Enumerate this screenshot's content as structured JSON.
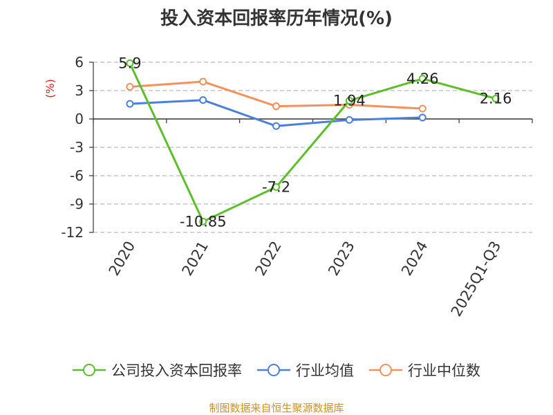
{
  "chart_data": {
    "type": "line",
    "title": "投入资本回报率历年情况(%)",
    "ylabel": "(%)",
    "xlabel": "",
    "categories": [
      "2020",
      "2021",
      "2022",
      "2023",
      "2024",
      "2025Q1-Q3"
    ],
    "ylim": [
      -12,
      6
    ],
    "yticks": [
      6,
      3,
      0,
      -3,
      -6,
      -9,
      -12
    ],
    "grid": true,
    "legend_position": "bottom",
    "series": [
      {
        "name": "公司投入资本回报率",
        "color": "#5cbf2a",
        "values": [
          5.9,
          -10.85,
          -7.2,
          1.94,
          4.26,
          2.16
        ],
        "labels": [
          "5.9",
          "-10.85",
          "-7.2",
          "1.94",
          "4.26",
          "2.16"
        ],
        "show_labels": true
      },
      {
        "name": "行业均值",
        "color": "#4a7fde",
        "values": [
          1.6,
          2.0,
          -0.75,
          -0.1,
          0.15,
          null
        ],
        "show_labels": false
      },
      {
        "name": "行业中位数",
        "color": "#f5905a",
        "values": [
          3.4,
          3.95,
          1.35,
          1.5,
          1.1,
          null
        ],
        "show_labels": false
      }
    ]
  },
  "source": "制图数据来自恒生聚源数据库",
  "colors": {
    "axis_label": "#e02020",
    "tick_text": "#333333",
    "grid": "#bbbbbb"
  }
}
